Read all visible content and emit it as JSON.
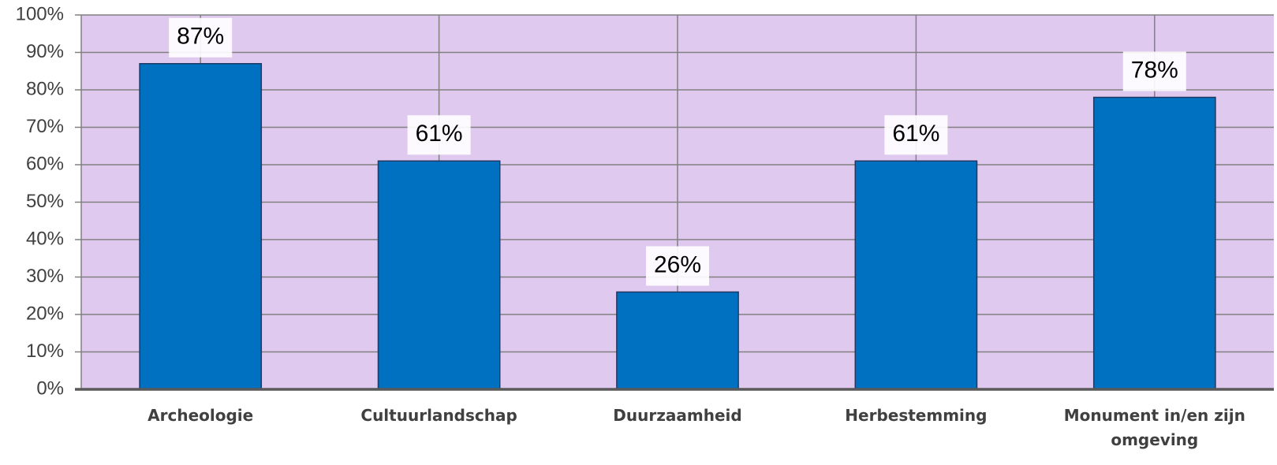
{
  "chart_data": {
    "type": "bar",
    "categories": [
      "Archeologie",
      "Cultuurlandschap",
      "Duurzaamheid",
      "Herbestemming",
      "Monument in/en zijn omgeving"
    ],
    "values": [
      87,
      61,
      26,
      61,
      78
    ],
    "value_labels": [
      "87%",
      "61%",
      "26%",
      "61%",
      "78%"
    ],
    "color": "#0070c0",
    "ylim": [
      0,
      100
    ],
    "yticks": [
      {
        "value": 0,
        "label": "0%"
      },
      {
        "value": 10,
        "label": "10%"
      },
      {
        "value": 20,
        "label": "20%"
      },
      {
        "value": 30,
        "label": "30%"
      },
      {
        "value": 40,
        "label": "40%"
      },
      {
        "value": 50,
        "label": "50%"
      },
      {
        "value": 60,
        "label": "60%"
      },
      {
        "value": 70,
        "label": "70%"
      },
      {
        "value": 80,
        "label": "80%"
      },
      {
        "value": 90,
        "label": "90%"
      },
      {
        "value": 100,
        "label": "100%"
      }
    ],
    "grid": true
  }
}
